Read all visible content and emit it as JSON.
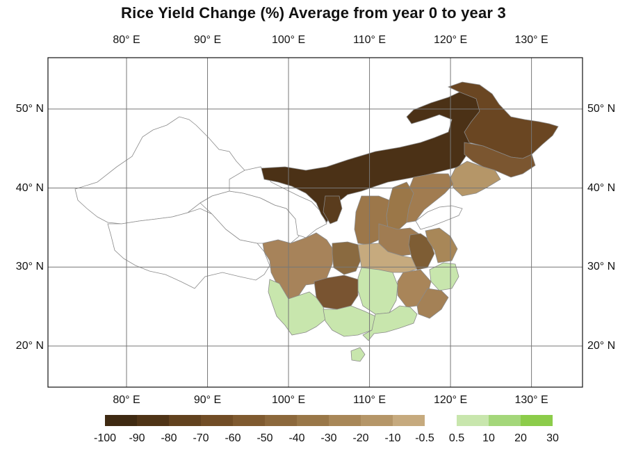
{
  "map": {
    "title": "Rice Yield Change (%)  Average from year 0 to year 3",
    "lon_ticks": [
      {
        "lon": 80,
        "label": "80° E"
      },
      {
        "lon": 90,
        "label": "90° E"
      },
      {
        "lon": 100,
        "label": "100° E"
      },
      {
        "lon": 110,
        "label": "110° E"
      },
      {
        "lon": 120,
        "label": "120° E"
      },
      {
        "lon": 130,
        "label": "130° E"
      }
    ],
    "lat_ticks": [
      {
        "lat": 50,
        "label": "50° N"
      },
      {
        "lat": 40,
        "label": "40° N"
      },
      {
        "lat": 30,
        "label": "30° N"
      },
      {
        "lat": 20,
        "label": "20° N"
      }
    ],
    "lon_range": [
      70.3,
      136.3
    ],
    "lat_range": [
      14.8,
      56.5
    ],
    "colors": {
      "no_data": "#ffffff",
      "outline": "#7a7a7a",
      "grid": "#777777"
    }
  },
  "legend": {
    "swatches": [
      "#3f2a12",
      "#4f3417",
      "#62421f",
      "#714d26",
      "#7f5a30",
      "#8c683c",
      "#997748",
      "#a88758",
      "#b59668",
      "#c6aa7e",
      "#ffffff",
      "#c8e6ad",
      "#a4d77a",
      "#8ccc4a"
    ],
    "labels": [
      "-100",
      "-90",
      "-80",
      "-70",
      "-60",
      "-50",
      "-40",
      "-30",
      "-20",
      "-10",
      "-0.5",
      "0.5",
      "10",
      "20",
      "30"
    ]
  }
}
